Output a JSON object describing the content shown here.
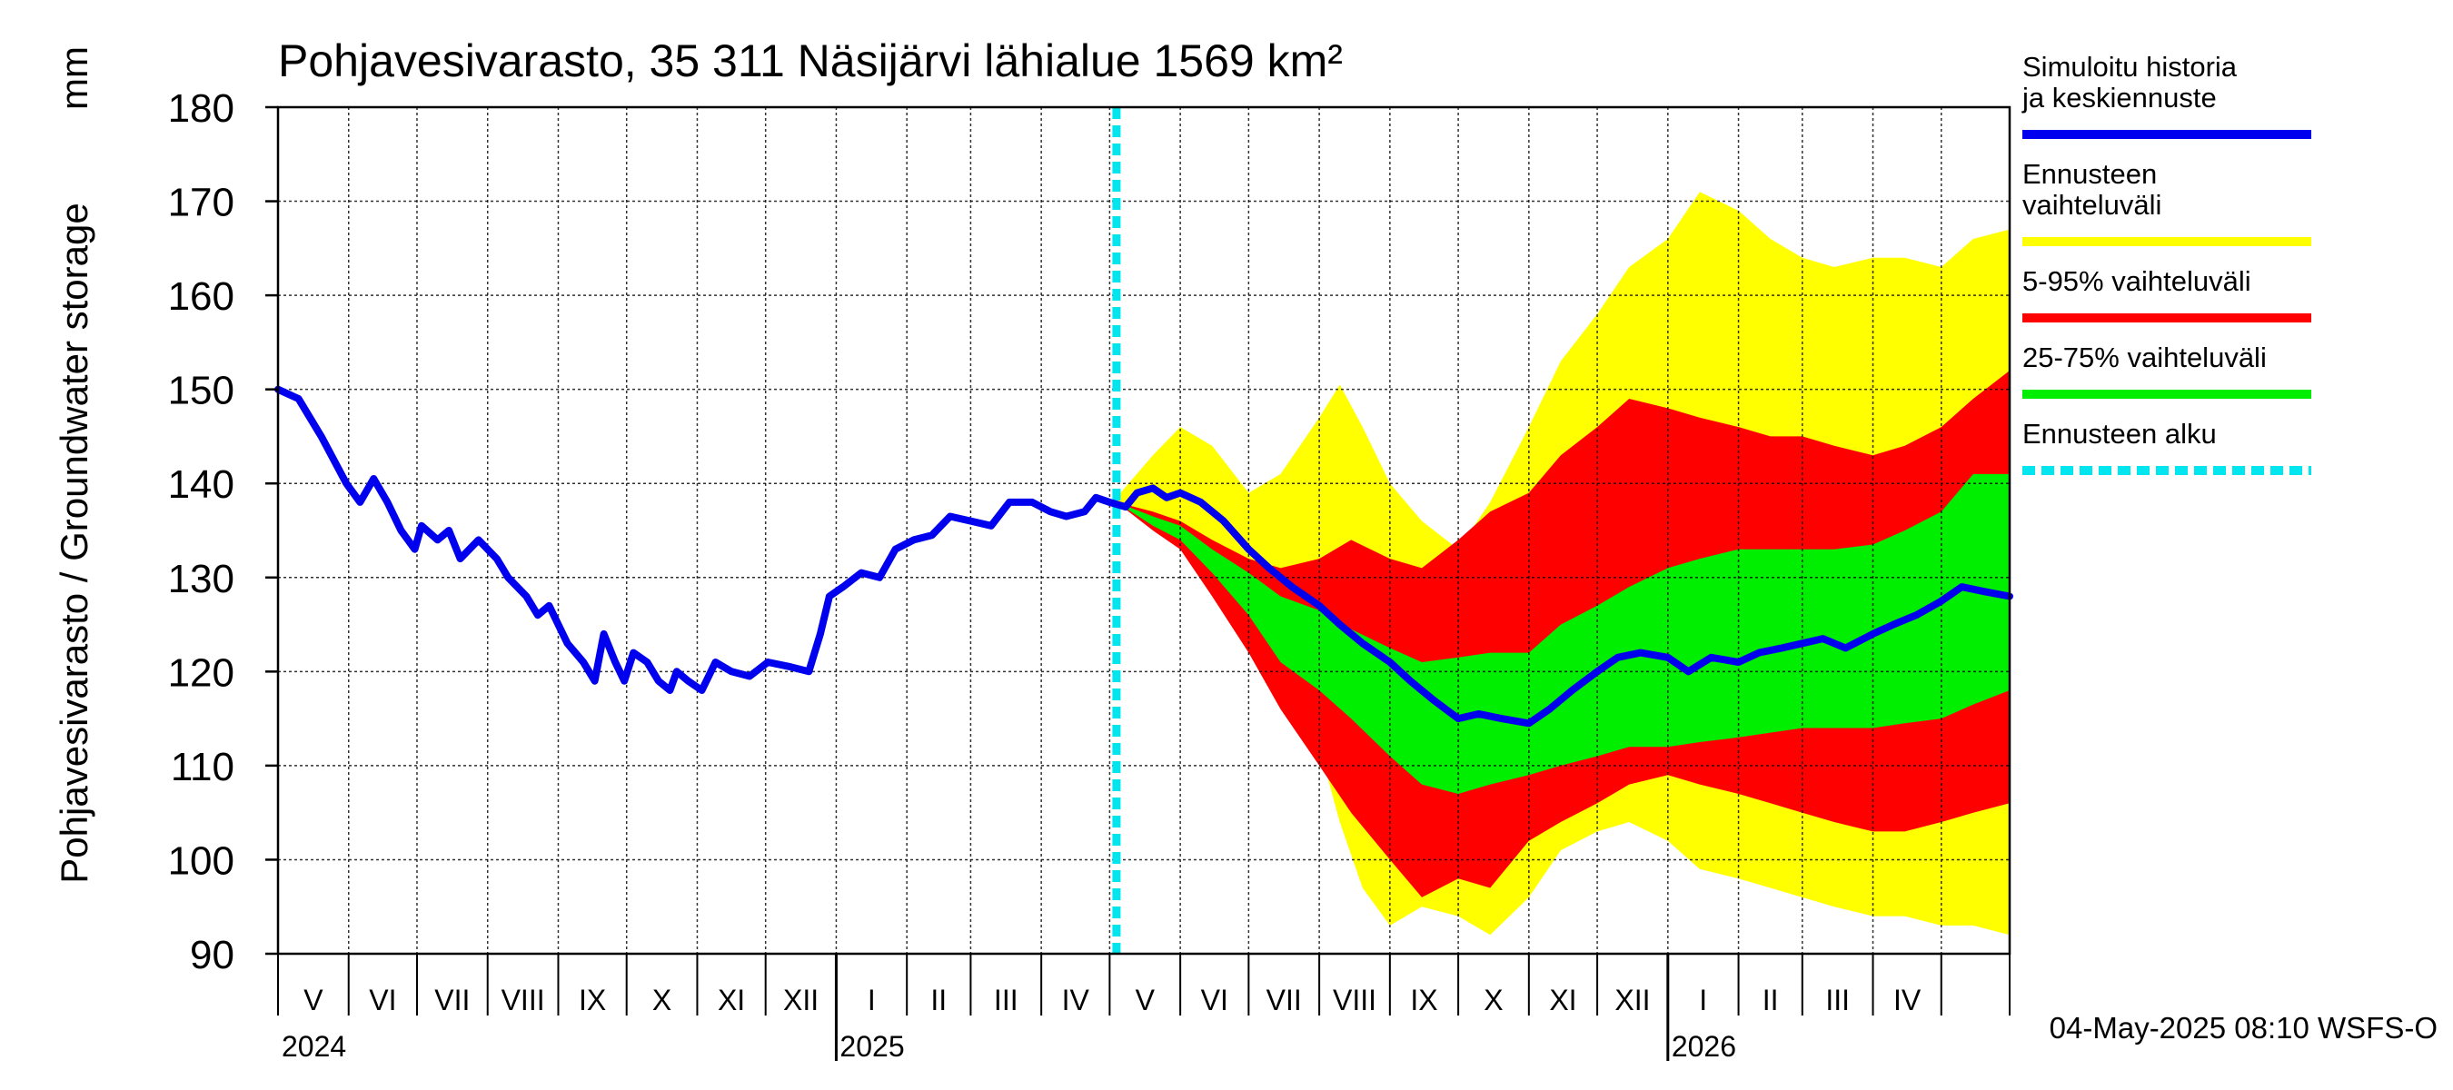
{
  "chart_data": {
    "type": "area",
    "title": "Pohjavesivarasto, 35 311 Näsijärvi lähialue 1569 km²",
    "ylabel": "Pohjavesivarasto / Groundwater storage",
    "yunit": "mm",
    "ylim": [
      90,
      180
    ],
    "yticks": [
      90,
      100,
      110,
      120,
      130,
      140,
      150,
      160,
      170,
      180
    ],
    "x_start": "2024-05-01",
    "x_end": "2026-05-31",
    "forecast_start": "2025-05-04",
    "grid": true,
    "legend_position": "right",
    "months": [
      {
        "label": "V",
        "start": "2024-05-01"
      },
      {
        "label": "VI",
        "start": "2024-06-01"
      },
      {
        "label": "VII",
        "start": "2024-07-01"
      },
      {
        "label": "VIII",
        "start": "2024-08-01"
      },
      {
        "label": "IX",
        "start": "2024-09-01"
      },
      {
        "label": "X",
        "start": "2024-10-01"
      },
      {
        "label": "XI",
        "start": "2024-11-01"
      },
      {
        "label": "XII",
        "start": "2024-12-01"
      },
      {
        "label": "I",
        "start": "2025-01-01"
      },
      {
        "label": "II",
        "start": "2025-02-01"
      },
      {
        "label": "III",
        "start": "2025-03-01"
      },
      {
        "label": "IV",
        "start": "2025-04-01"
      },
      {
        "label": "V",
        "start": "2025-05-01"
      },
      {
        "label": "VI",
        "start": "2025-06-01"
      },
      {
        "label": "VII",
        "start": "2025-07-01"
      },
      {
        "label": "VIII",
        "start": "2025-08-01"
      },
      {
        "label": "IX",
        "start": "2025-09-01"
      },
      {
        "label": "X",
        "start": "2025-10-01"
      },
      {
        "label": "XI",
        "start": "2025-11-01"
      },
      {
        "label": "XII",
        "start": "2025-12-01"
      },
      {
        "label": "I",
        "start": "2026-01-01"
      },
      {
        "label": "II",
        "start": "2026-02-01"
      },
      {
        "label": "III",
        "start": "2026-03-01"
      },
      {
        "label": "IV",
        "start": "2026-04-01"
      },
      {
        "label": "",
        "start": "2026-05-01"
      }
    ],
    "years": [
      {
        "label": "2024",
        "start": "2024-05-01"
      },
      {
        "label": "2025",
        "start": "2025-01-01"
      },
      {
        "label": "2026",
        "start": "2026-01-01"
      }
    ],
    "series": [
      {
        "name": "Simuloitu historia ja keskiennuste",
        "kind": "line",
        "color": "#0000ee",
        "points": [
          [
            "2024-05-01",
            150
          ],
          [
            "2024-05-10",
            149
          ],
          [
            "2024-05-20",
            145
          ],
          [
            "2024-05-31",
            140
          ],
          [
            "2024-06-06",
            138
          ],
          [
            "2024-06-12",
            140.5
          ],
          [
            "2024-06-18",
            138
          ],
          [
            "2024-06-24",
            135
          ],
          [
            "2024-06-30",
            133
          ],
          [
            "2024-07-03",
            135.5
          ],
          [
            "2024-07-10",
            134
          ],
          [
            "2024-07-15",
            135
          ],
          [
            "2024-07-20",
            132
          ],
          [
            "2024-07-28",
            134
          ],
          [
            "2024-08-05",
            132
          ],
          [
            "2024-08-10",
            130
          ],
          [
            "2024-08-18",
            128
          ],
          [
            "2024-08-23",
            126
          ],
          [
            "2024-08-28",
            127
          ],
          [
            "2024-09-05",
            123
          ],
          [
            "2024-09-12",
            121
          ],
          [
            "2024-09-17",
            119
          ],
          [
            "2024-09-21",
            124
          ],
          [
            "2024-09-26",
            121
          ],
          [
            "2024-09-30",
            119
          ],
          [
            "2024-10-04",
            122
          ],
          [
            "2024-10-10",
            121
          ],
          [
            "2024-10-15",
            119
          ],
          [
            "2024-10-20",
            118
          ],
          [
            "2024-10-23",
            120
          ],
          [
            "2024-10-28",
            119
          ],
          [
            "2024-11-03",
            118
          ],
          [
            "2024-11-09",
            121
          ],
          [
            "2024-11-16",
            120
          ],
          [
            "2024-11-24",
            119.5
          ],
          [
            "2024-12-02",
            121
          ],
          [
            "2024-12-12",
            120.5
          ],
          [
            "2024-12-20",
            120
          ],
          [
            "2024-12-25",
            124
          ],
          [
            "2024-12-29",
            128
          ],
          [
            "2025-01-04",
            129
          ],
          [
            "2025-01-12",
            130.5
          ],
          [
            "2025-01-20",
            130
          ],
          [
            "2025-01-27",
            133
          ],
          [
            "2025-02-04",
            134
          ],
          [
            "2025-02-12",
            134.5
          ],
          [
            "2025-02-20",
            136.5
          ],
          [
            "2025-03-01",
            136
          ],
          [
            "2025-03-10",
            135.5
          ],
          [
            "2025-03-18",
            138
          ],
          [
            "2025-03-28",
            138
          ],
          [
            "2025-04-05",
            137
          ],
          [
            "2025-04-12",
            136.5
          ],
          [
            "2025-04-20",
            137
          ],
          [
            "2025-04-25",
            138.5
          ],
          [
            "2025-05-01",
            138
          ],
          [
            "2025-05-08",
            137.5
          ],
          [
            "2025-05-13",
            139
          ],
          [
            "2025-05-20",
            139.5
          ],
          [
            "2025-05-26",
            138.5
          ],
          [
            "2025-06-01",
            139
          ],
          [
            "2025-06-10",
            138
          ],
          [
            "2025-06-20",
            136
          ],
          [
            "2025-07-01",
            133
          ],
          [
            "2025-07-10",
            131
          ],
          [
            "2025-07-20",
            129
          ],
          [
            "2025-08-01",
            127
          ],
          [
            "2025-08-10",
            125
          ],
          [
            "2025-08-20",
            123
          ],
          [
            "2025-09-01",
            121
          ],
          [
            "2025-09-10",
            119
          ],
          [
            "2025-09-20",
            117
          ],
          [
            "2025-10-01",
            115
          ],
          [
            "2025-10-10",
            115.5
          ],
          [
            "2025-10-20",
            115
          ],
          [
            "2025-11-01",
            114.5
          ],
          [
            "2025-11-10",
            116
          ],
          [
            "2025-11-20",
            118
          ],
          [
            "2025-12-01",
            120
          ],
          [
            "2025-12-10",
            121.5
          ],
          [
            "2025-12-20",
            122
          ],
          [
            "2026-01-01",
            121.5
          ],
          [
            "2026-01-10",
            120
          ],
          [
            "2026-01-20",
            121.5
          ],
          [
            "2026-02-01",
            121
          ],
          [
            "2026-02-10",
            122
          ],
          [
            "2026-02-20",
            122.5
          ],
          [
            "2026-03-01",
            123
          ],
          [
            "2026-03-10",
            123.5
          ],
          [
            "2026-03-20",
            122.5
          ],
          [
            "2026-04-01",
            124
          ],
          [
            "2026-04-10",
            125
          ],
          [
            "2026-04-20",
            126
          ],
          [
            "2026-05-01",
            127.5
          ],
          [
            "2026-05-10",
            129
          ],
          [
            "2026-05-20",
            128.5
          ],
          [
            "2026-05-31",
            128
          ]
        ]
      },
      {
        "name": "Ennusteen vaihteluväli",
        "kind": "band",
        "color": "#ffff00",
        "x": [
          "2025-05-04",
          "2025-05-20",
          "2025-06-01",
          "2025-06-15",
          "2025-07-01",
          "2025-07-15",
          "2025-08-01",
          "2025-08-10",
          "2025-08-20",
          "2025-09-01",
          "2025-09-15",
          "2025-10-01",
          "2025-10-15",
          "2025-11-01",
          "2025-11-15",
          "2025-12-01",
          "2025-12-15",
          "2026-01-01",
          "2026-01-15",
          "2026-02-01",
          "2026-02-15",
          "2026-03-01",
          "2026-03-15",
          "2026-04-01",
          "2026-04-15",
          "2026-05-01",
          "2026-05-15",
          "2026-05-31"
        ],
        "upper": [
          138.5,
          143,
          146,
          144,
          139,
          141,
          147,
          150.5,
          146,
          140,
          136,
          133,
          138,
          146,
          153,
          158,
          163,
          166,
          171,
          169,
          166,
          164,
          163,
          164,
          164,
          163,
          166,
          167
        ],
        "lower": [
          138,
          136,
          134,
          130,
          124,
          118,
          112,
          104,
          97,
          93,
          95,
          94,
          92,
          96,
          101,
          103,
          104,
          102,
          99,
          98,
          97,
          96,
          95,
          94,
          94,
          93,
          93,
          92
        ]
      },
      {
        "name": "5-95% vaihteluväli",
        "kind": "band",
        "color": "#ff0000",
        "x": [
          "2025-05-04",
          "2025-05-20",
          "2025-06-01",
          "2025-06-15",
          "2025-07-01",
          "2025-07-15",
          "2025-08-01",
          "2025-08-15",
          "2025-09-01",
          "2025-09-15",
          "2025-10-01",
          "2025-10-15",
          "2025-11-01",
          "2025-11-15",
          "2025-12-01",
          "2025-12-15",
          "2026-01-01",
          "2026-01-15",
          "2026-02-01",
          "2026-02-15",
          "2026-03-01",
          "2026-03-15",
          "2026-04-01",
          "2026-04-15",
          "2026-05-01",
          "2026-05-15",
          "2026-05-31"
        ],
        "upper": [
          138,
          137,
          136,
          134,
          132,
          131,
          132,
          134,
          132,
          131,
          134,
          137,
          139,
          143,
          146,
          149,
          148,
          147,
          146,
          145,
          145,
          144,
          143,
          144,
          146,
          149,
          152
        ],
        "lower": [
          138,
          135,
          133,
          128,
          122,
          116,
          110,
          105,
          100,
          96,
          98,
          97,
          102,
          104,
          106,
          108,
          109,
          108,
          107,
          106,
          105,
          104,
          103,
          103,
          104,
          105,
          106
        ]
      },
      {
        "name": "25-75% vaihteluväli",
        "kind": "band",
        "color": "#00ee00",
        "x": [
          "2025-05-04",
          "2025-05-20",
          "2025-06-01",
          "2025-06-15",
          "2025-07-01",
          "2025-07-15",
          "2025-08-01",
          "2025-08-15",
          "2025-09-01",
          "2025-09-15",
          "2025-10-01",
          "2025-10-15",
          "2025-11-01",
          "2025-11-15",
          "2025-12-01",
          "2025-12-15",
          "2026-01-01",
          "2026-01-15",
          "2026-02-01",
          "2026-02-15",
          "2026-03-01",
          "2026-03-15",
          "2026-04-01",
          "2026-04-15",
          "2026-05-01",
          "2026-05-15",
          "2026-05-31"
        ],
        "upper": [
          138,
          136.5,
          135.5,
          133,
          130.5,
          128,
          126.5,
          124.5,
          122.5,
          121,
          121.5,
          122,
          122,
          125,
          127,
          129,
          131,
          132,
          133,
          133,
          133,
          133,
          133.5,
          135,
          137,
          141,
          141
        ],
        "lower": [
          138,
          135.5,
          134,
          130.5,
          126,
          121,
          118,
          115,
          111,
          108,
          107,
          108,
          109,
          110,
          111,
          112,
          112,
          112.5,
          113,
          113.5,
          114,
          114,
          114,
          114.5,
          115,
          116.5,
          118
        ]
      },
      {
        "name": "Ennusteen alku",
        "kind": "vline",
        "color": "#00e5ee",
        "x": "2025-05-04"
      }
    ],
    "footer_stamp": "04-May-2025 08:10 WSFS-O"
  }
}
